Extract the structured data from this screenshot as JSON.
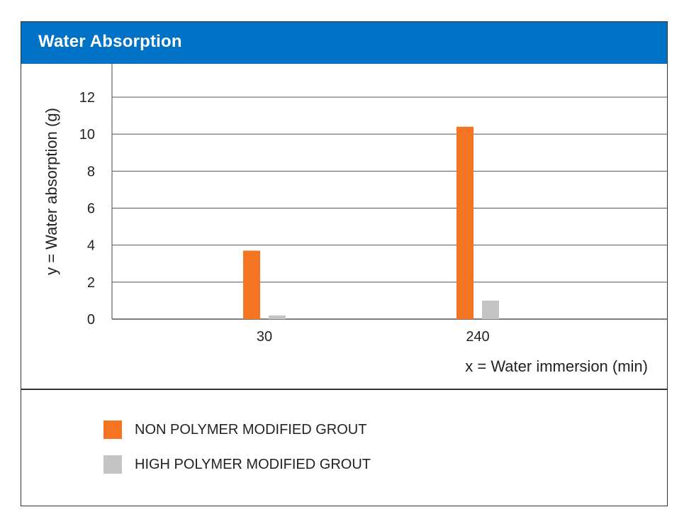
{
  "colors": {
    "header_bg": "#0072C6",
    "series_1": "#F47421",
    "series_2": "#C4C4C4",
    "grid": "#555555"
  },
  "chart_data": {
    "type": "bar",
    "title": "Water Absorption",
    "xlabel": "x = Water immersion (min)",
    "ylabel": "y = Water absorption (g)",
    "categories": [
      "30",
      "240"
    ],
    "series": [
      {
        "name": "NON POLYMER MODIFIED GROUT",
        "values": [
          3.7,
          10.4
        ]
      },
      {
        "name": "HIGH POLYMER MODIFIED GROUT",
        "values": [
          0.2,
          1.0
        ]
      }
    ],
    "ylim": [
      0,
      12
    ],
    "yticks": [
      "0",
      "2",
      "4",
      "6",
      "8",
      "10",
      "12"
    ],
    "grid": true,
    "legend_position": "bottom-left"
  }
}
